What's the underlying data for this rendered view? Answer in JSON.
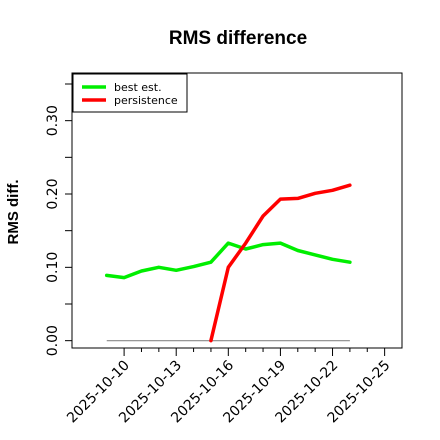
{
  "chart_data": {
    "type": "line",
    "title": "RMS difference",
    "xlabel": "",
    "ylabel": "RMS diff.",
    "xlim": [
      "2025-10-07",
      "2025-10-26"
    ],
    "ylim": [
      -0.01,
      0.365
    ],
    "x_ticks": [
      "2025-10-10",
      "2025-10-13",
      "2025-10-16",
      "2025-10-19",
      "2025-10-22",
      "2025-10-25"
    ],
    "y_ticks": [
      0.0,
      0.1,
      0.2,
      0.3
    ],
    "y_tick_labels": [
      "0.00",
      "0.10",
      "0.20",
      "0.30"
    ],
    "grid": false,
    "legend_position": "top-left",
    "series": [
      {
        "name": "best est.",
        "color": "#00ee00",
        "x": [
          "2025-10-09",
          "2025-10-10",
          "2025-10-11",
          "2025-10-12",
          "2025-10-13",
          "2025-10-14",
          "2025-10-15",
          "2025-10-16",
          "2025-10-17",
          "2025-10-18",
          "2025-10-19",
          "2025-10-20",
          "2025-10-21",
          "2025-10-22",
          "2025-10-23"
        ],
        "y": [
          0.089,
          0.086,
          0.095,
          0.1,
          0.096,
          0.101,
          0.107,
          0.133,
          0.125,
          0.131,
          0.133,
          0.123,
          0.117,
          0.111,
          0.107
        ]
      },
      {
        "name": "persistence",
        "color": "#ff0000",
        "x": [
          "2025-10-15",
          "2025-10-16",
          "2025-10-17",
          "2025-10-18",
          "2025-10-19",
          "2025-10-20",
          "2025-10-21",
          "2025-10-22",
          "2025-10-23"
        ],
        "y": [
          0.0,
          0.1,
          0.133,
          0.17,
          0.193,
          0.194,
          0.201,
          0.205,
          0.212
        ]
      }
    ],
    "reference_line": {
      "y": 0.0,
      "x": [
        "2025-10-09",
        "2025-10-23"
      ],
      "color": "#888888"
    }
  }
}
